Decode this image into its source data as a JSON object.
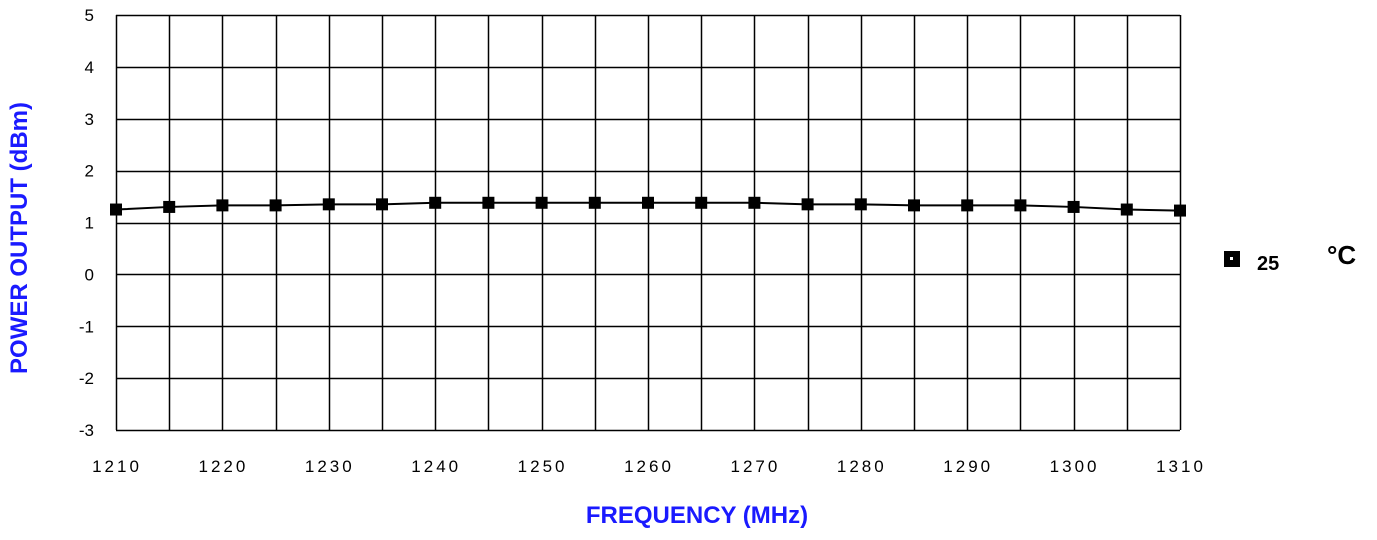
{
  "chart_data": {
    "type": "line",
    "title": "",
    "xlabel": "FREQUENCY (MHz)",
    "ylabel": "POWER OUTPUT (dBm)",
    "xlim": [
      1210,
      1310
    ],
    "ylim": [
      -3,
      5
    ],
    "x_ticks": [
      1210,
      1220,
      1230,
      1240,
      1250,
      1260,
      1270,
      1280,
      1290,
      1300,
      1310
    ],
    "y_ticks": [
      -3,
      -2,
      -1,
      0,
      1,
      2,
      3,
      4,
      5
    ],
    "x_ticks_text": [
      "1210",
      "1220",
      "1230",
      "1240",
      "1250",
      "1260",
      "1270",
      "1280",
      "1290",
      "1300",
      "1310"
    ],
    "y_ticks_text": [
      "-3",
      "-2",
      "-1",
      "0",
      "1",
      "2",
      "3",
      "4",
      "5"
    ],
    "grid": true,
    "legend_position": "right",
    "legend_unit": "°C",
    "series": [
      {
        "name": "25",
        "marker": "square",
        "x": [
          1210,
          1215,
          1220,
          1225,
          1230,
          1235,
          1240,
          1245,
          1250,
          1255,
          1260,
          1265,
          1270,
          1275,
          1280,
          1285,
          1290,
          1295,
          1300,
          1305,
          1310
        ],
        "y": [
          1.25,
          1.3,
          1.33,
          1.33,
          1.35,
          1.35,
          1.38,
          1.38,
          1.38,
          1.38,
          1.38,
          1.38,
          1.38,
          1.35,
          1.35,
          1.33,
          1.33,
          1.33,
          1.3,
          1.25,
          1.23
        ]
      }
    ],
    "colors": {
      "axis_title": "#1a1aff",
      "line": "#000000",
      "marker": "#000000",
      "grid": "#000000"
    }
  }
}
